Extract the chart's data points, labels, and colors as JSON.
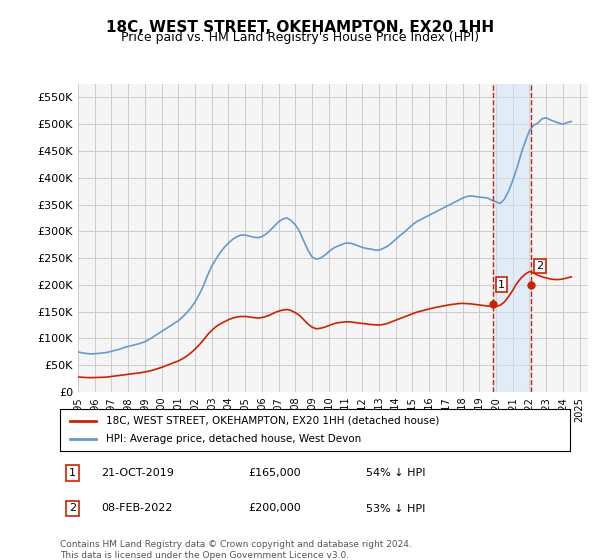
{
  "title": "18C, WEST STREET, OKEHAMPTON, EX20 1HH",
  "subtitle": "Price paid vs. HM Land Registry's House Price Index (HPI)",
  "ylabel_ticks": [
    "£0",
    "£50K",
    "£100K",
    "£150K",
    "£200K",
    "£250K",
    "£300K",
    "£350K",
    "£400K",
    "£450K",
    "£500K",
    "£550K"
  ],
  "ylim": [
    0,
    575000
  ],
  "xlim": [
    1995.0,
    2025.5
  ],
  "grid_color": "#cccccc",
  "background_color": "#ffffff",
  "plot_bg_color": "#f5f5f5",
  "hpi_color": "#6699cc",
  "price_color": "#cc2200",
  "sale1_x": 2019.81,
  "sale1_y": 165000,
  "sale2_x": 2022.1,
  "sale2_y": 200000,
  "sale1_label": "1",
  "sale2_label": "2",
  "vline_color": "#cc2200",
  "shade_color": "#d0e4f7",
  "legend_label1": "18C, WEST STREET, OKEHAMPTON, EX20 1HH (detached house)",
  "legend_label2": "HPI: Average price, detached house, West Devon",
  "annotation1": "1    21-OCT-2019         £165,000        54% ↓ HPI",
  "annotation2": "2    08-FEB-2022          £200,000        53% ↓ HPI",
  "footer": "Contains HM Land Registry data © Crown copyright and database right 2024.\nThis data is licensed under the Open Government Licence v3.0.",
  "hpi_data_x": [
    1995.0,
    1995.25,
    1995.5,
    1995.75,
    1996.0,
    1996.25,
    1996.5,
    1996.75,
    1997.0,
    1997.25,
    1997.5,
    1997.75,
    1998.0,
    1998.25,
    1998.5,
    1998.75,
    1999.0,
    1999.25,
    1999.5,
    1999.75,
    2000.0,
    2000.25,
    2000.5,
    2000.75,
    2001.0,
    2001.25,
    2001.5,
    2001.75,
    2002.0,
    2002.25,
    2002.5,
    2002.75,
    2003.0,
    2003.25,
    2003.5,
    2003.75,
    2004.0,
    2004.25,
    2004.5,
    2004.75,
    2005.0,
    2005.25,
    2005.5,
    2005.75,
    2006.0,
    2006.25,
    2006.5,
    2006.75,
    2007.0,
    2007.25,
    2007.5,
    2007.75,
    2008.0,
    2008.25,
    2008.5,
    2008.75,
    2009.0,
    2009.25,
    2009.5,
    2009.75,
    2010.0,
    2010.25,
    2010.5,
    2010.75,
    2011.0,
    2011.25,
    2011.5,
    2011.75,
    2012.0,
    2012.25,
    2012.5,
    2012.75,
    2013.0,
    2013.25,
    2013.5,
    2013.75,
    2014.0,
    2014.25,
    2014.5,
    2014.75,
    2015.0,
    2015.25,
    2015.5,
    2015.75,
    2016.0,
    2016.25,
    2016.5,
    2016.75,
    2017.0,
    2017.25,
    2017.5,
    2017.75,
    2018.0,
    2018.25,
    2018.5,
    2018.75,
    2019.0,
    2019.25,
    2019.5,
    2019.75,
    2020.0,
    2020.25,
    2020.5,
    2020.75,
    2021.0,
    2021.25,
    2021.5,
    2021.75,
    2022.0,
    2022.25,
    2022.5,
    2022.75,
    2023.0,
    2023.25,
    2023.5,
    2023.75,
    2024.0,
    2024.25,
    2024.5
  ],
  "hpi_data_y": [
    75000,
    73000,
    72000,
    71000,
    71500,
    72000,
    73000,
    74000,
    76000,
    78000,
    80000,
    83000,
    85000,
    87000,
    89000,
    91000,
    94000,
    98000,
    103000,
    108000,
    113000,
    118000,
    123000,
    128000,
    133000,
    140000,
    148000,
    157000,
    168000,
    182000,
    198000,
    218000,
    235000,
    248000,
    260000,
    270000,
    278000,
    285000,
    290000,
    293000,
    293000,
    291000,
    289000,
    288000,
    290000,
    295000,
    302000,
    310000,
    318000,
    323000,
    325000,
    320000,
    312000,
    300000,
    282000,
    265000,
    252000,
    248000,
    250000,
    255000,
    262000,
    268000,
    272000,
    275000,
    278000,
    278000,
    276000,
    273000,
    270000,
    268000,
    267000,
    265000,
    265000,
    268000,
    272000,
    278000,
    285000,
    292000,
    298000,
    305000,
    312000,
    318000,
    322000,
    326000,
    330000,
    334000,
    338000,
    342000,
    346000,
    350000,
    354000,
    358000,
    362000,
    365000,
    366000,
    365000,
    364000,
    363000,
    362000,
    358000,
    355000,
    352000,
    360000,
    375000,
    395000,
    418000,
    445000,
    468000,
    488000,
    498000,
    502000,
    510000,
    512000,
    508000,
    505000,
    502000,
    500000,
    503000,
    505000
  ],
  "price_data_x": [
    1995.0,
    1995.25,
    1995.5,
    1995.75,
    1996.0,
    1996.25,
    1996.5,
    1996.75,
    1997.0,
    1997.25,
    1997.5,
    1997.75,
    1998.0,
    1998.25,
    1998.5,
    1998.75,
    1999.0,
    1999.25,
    1999.5,
    1999.75,
    2000.0,
    2000.25,
    2000.5,
    2000.75,
    2001.0,
    2001.25,
    2001.5,
    2001.75,
    2002.0,
    2002.25,
    2002.5,
    2002.75,
    2003.0,
    2003.25,
    2003.5,
    2003.75,
    2004.0,
    2004.25,
    2004.5,
    2004.75,
    2005.0,
    2005.25,
    2005.5,
    2005.75,
    2006.0,
    2006.25,
    2006.5,
    2006.75,
    2007.0,
    2007.25,
    2007.5,
    2007.75,
    2008.0,
    2008.25,
    2008.5,
    2008.75,
    2009.0,
    2009.25,
    2009.5,
    2009.75,
    2010.0,
    2010.25,
    2010.5,
    2010.75,
    2011.0,
    2011.25,
    2011.5,
    2011.75,
    2012.0,
    2012.25,
    2012.5,
    2012.75,
    2013.0,
    2013.25,
    2013.5,
    2013.75,
    2014.0,
    2014.25,
    2014.5,
    2014.75,
    2015.0,
    2015.25,
    2015.5,
    2015.75,
    2016.0,
    2016.25,
    2016.5,
    2016.75,
    2017.0,
    2017.25,
    2017.5,
    2017.75,
    2018.0,
    2018.25,
    2018.5,
    2018.75,
    2019.0,
    2019.25,
    2019.5,
    2019.75,
    2020.0,
    2020.25,
    2020.5,
    2020.75,
    2021.0,
    2021.25,
    2021.5,
    2021.75,
    2022.0,
    2022.25,
    2022.5,
    2022.75,
    2023.0,
    2023.25,
    2023.5,
    2023.75,
    2024.0,
    2024.25,
    2024.5
  ],
  "price_data_y": [
    28000,
    27500,
    27000,
    26800,
    27000,
    27200,
    27500,
    28000,
    29000,
    30000,
    31000,
    32000,
    33000,
    34000,
    35000,
    36000,
    37500,
    39000,
    41000,
    43500,
    46000,
    49000,
    52000,
    55000,
    58000,
    62000,
    67000,
    73000,
    80000,
    88000,
    97000,
    107000,
    115000,
    122000,
    127000,
    131000,
    135000,
    138000,
    140000,
    141000,
    141000,
    140000,
    139000,
    138000,
    139000,
    141000,
    144000,
    148000,
    151000,
    153000,
    154000,
    152000,
    148000,
    143000,
    135000,
    127000,
    121000,
    118000,
    119000,
    121000,
    124000,
    127000,
    129000,
    130000,
    131000,
    131000,
    130000,
    129000,
    128000,
    127000,
    126000,
    125500,
    125000,
    126000,
    128000,
    131000,
    134000,
    137000,
    140000,
    143000,
    146000,
    149000,
    151000,
    153000,
    155000,
    157000,
    158500,
    160000,
    161500,
    163000,
    164000,
    165000,
    165500,
    165000,
    164500,
    163500,
    162500,
    161500,
    160500,
    160000,
    160000,
    162000,
    168000,
    178000,
    190000,
    203000,
    213000,
    220000,
    225000,
    222000,
    218000,
    215000,
    213000,
    211000,
    210000,
    210000,
    211000,
    213000,
    215000
  ]
}
